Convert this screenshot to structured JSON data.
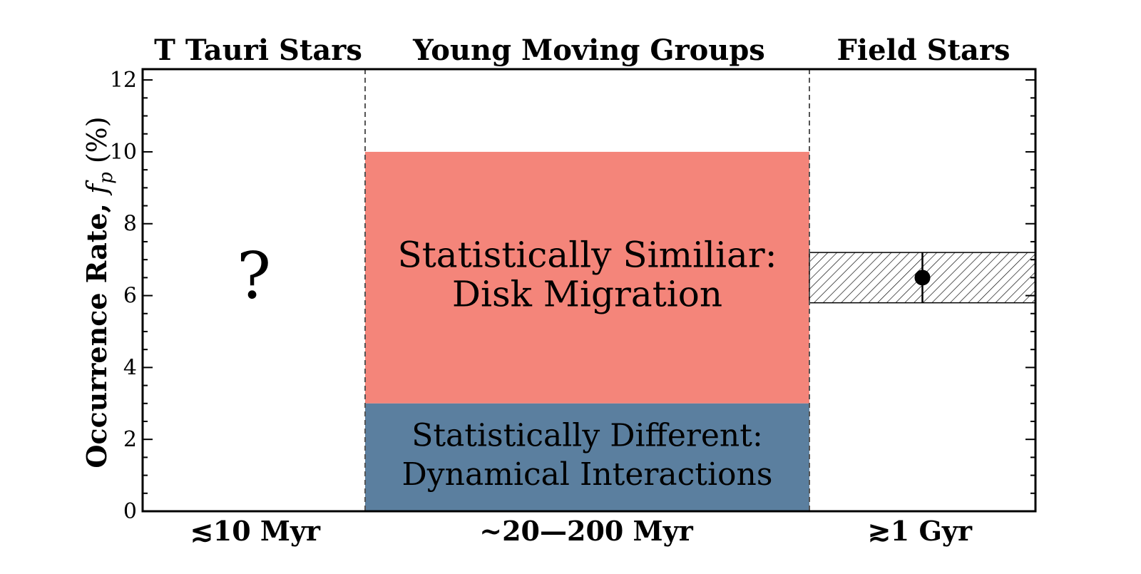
{
  "chart_data": {
    "type": "bar",
    "ylabel_main": "Occurrence Rate, ",
    "ylabel_symbol": "f",
    "ylabel_sub": "p",
    "ylabel_unit": " (%)",
    "ylim": [
      0,
      12.3
    ],
    "yticks": [
      0,
      2,
      4,
      6,
      8,
      10,
      12
    ],
    "grid": false,
    "regions": [
      {
        "title": "T Tauri Stars",
        "age_label": "≲10 Myr"
      },
      {
        "title": "Young Moving Groups",
        "age_label": "~20—200 Myr"
      },
      {
        "title": "Field Stars",
        "age_label": "≳1 Gyr"
      }
    ],
    "unknown_marker": "?",
    "bars": [
      {
        "region": "Young Moving Groups",
        "y0": 3,
        "y1": 10,
        "color": "#f4857a",
        "line1": "Statistically Similiar:",
        "line2": "Disk Migration"
      },
      {
        "region": "Young Moving Groups",
        "y0": 0,
        "y1": 3,
        "color": "#5b7f9f",
        "line1": "Statistically Different:",
        "line2": "Dynamical Interactions"
      }
    ],
    "field_measurement": {
      "region": "Field Stars",
      "value": 6.5,
      "band_low": 5.8,
      "band_high": 7.2,
      "err_low": 5.8,
      "err_high": 7.2,
      "hatch": "diagonal"
    },
    "colors": {
      "axis": "#000000",
      "divider": "#555555"
    }
  }
}
